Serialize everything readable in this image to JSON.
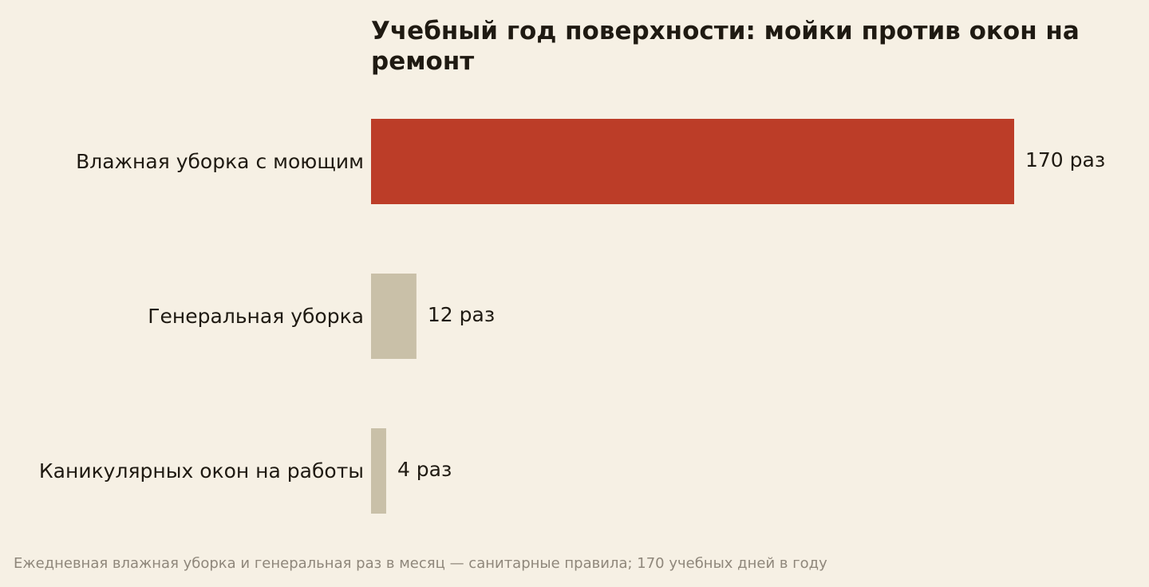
{
  "chart_data": {
    "type": "bar",
    "orientation": "horizontal",
    "title": "Учебный год поверхности: мойки против окон на ремонт",
    "categories": [
      "Влажная уборка с моющим",
      "Генеральная уборка",
      "Каникулярных окон на работы"
    ],
    "values": [
      170,
      12,
      4
    ],
    "value_labels": [
      "170 раз",
      "12 раз",
      "4 раз"
    ],
    "xlim": [
      0,
      170
    ],
    "grid": false,
    "legend": "none",
    "colors": [
      "#bc3d28",
      "#c9c0a8",
      "#c9c0a8"
    ],
    "note": "Ежедневная влажная уборка и генеральная раз в месяц — санитарные правила; 170 учебных дней в году"
  },
  "colors": {
    "background": "#f6f0e4",
    "highlight": "#bc3d28",
    "muted": "#c9c0a8",
    "text": "#1f1a12",
    "note": "#8f877b"
  }
}
